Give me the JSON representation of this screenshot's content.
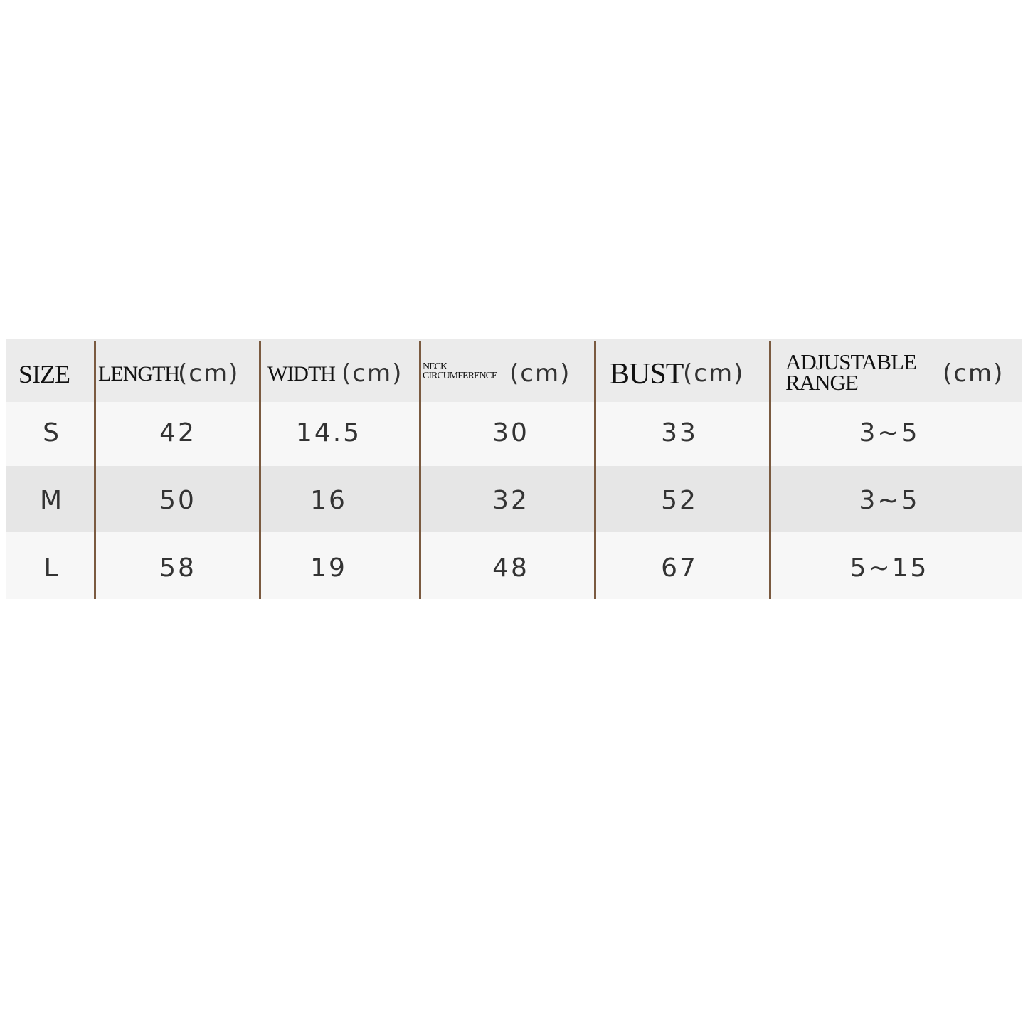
{
  "table": {
    "headers": [
      {
        "label": [
          "SIZE"
        ]
      },
      {
        "label": [
          "LENGTH"
        ],
        "unit": "(cm)"
      },
      {
        "label": [
          "WIDTH"
        ],
        "unit": "(cm)"
      },
      {
        "label": [
          "NECK",
          "CIRCUMFERENCE"
        ],
        "unit": "(cm)"
      },
      {
        "label": [
          "BUST"
        ],
        "unit": "(cm)"
      },
      {
        "label": [
          "ADJUSTABLE",
          "RANGE"
        ],
        "unit": "(cm)"
      }
    ],
    "rows": [
      [
        "S",
        "42",
        "14.5",
        "30",
        "33",
        "3~5"
      ],
      [
        "M",
        "50",
        "16",
        "32",
        "52",
        "3~5"
      ],
      [
        "L",
        "58",
        "19",
        "48",
        "67",
        "5~15"
      ]
    ]
  }
}
